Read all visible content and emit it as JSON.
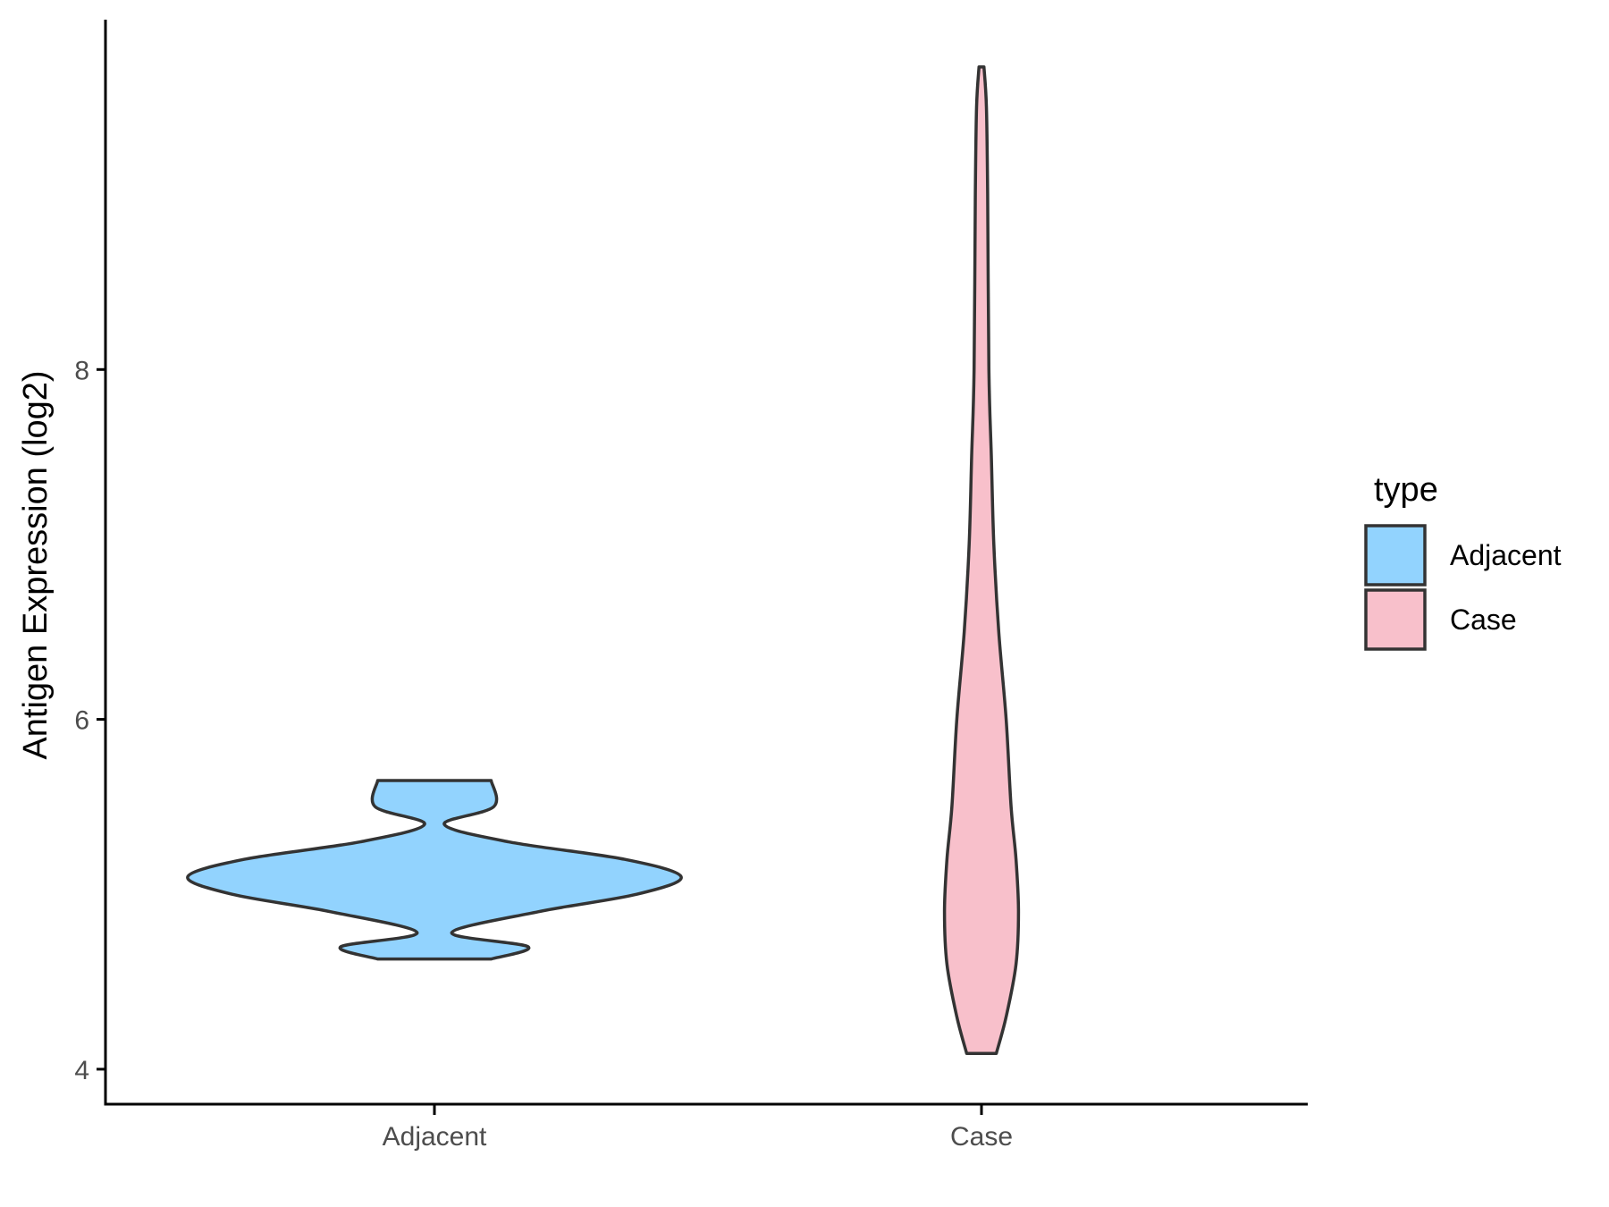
{
  "chart_data": {
    "type": "violin",
    "title": "",
    "xlabel": "",
    "ylabel": "Antigen Expression (log2)",
    "ylim": [
      3.8,
      10.0
    ],
    "yticks": [
      4,
      6,
      8
    ],
    "categories": [
      "Adjacent",
      "Case"
    ],
    "legend": {
      "title": "type",
      "position": "right",
      "entries": [
        {
          "label": "Adjacent",
          "color": "#92d3fe"
        },
        {
          "label": "Case",
          "color": "#f8c0cb"
        }
      ]
    },
    "grid": false,
    "series": [
      {
        "category": "Adjacent",
        "color": "#92d3fe",
        "min": 4.63,
        "max": 5.65,
        "density": [
          [
            4.63,
            0.23
          ],
          [
            4.7,
            0.38
          ],
          [
            4.78,
            0.07
          ],
          [
            4.9,
            0.42
          ],
          [
            5.0,
            0.82
          ],
          [
            5.1,
            1.0
          ],
          [
            5.2,
            0.77
          ],
          [
            5.3,
            0.3
          ],
          [
            5.4,
            0.04
          ],
          [
            5.5,
            0.24
          ],
          [
            5.65,
            0.23
          ]
        ]
      },
      {
        "category": "Case",
        "color": "#f8c0cb",
        "min": 4.09,
        "max": 9.73,
        "density": [
          [
            4.09,
            0.06
          ],
          [
            4.3,
            0.1
          ],
          [
            4.6,
            0.14
          ],
          [
            4.9,
            0.15
          ],
          [
            5.2,
            0.14
          ],
          [
            5.5,
            0.12
          ],
          [
            6.0,
            0.1
          ],
          [
            6.5,
            0.07
          ],
          [
            7.0,
            0.05
          ],
          [
            7.5,
            0.04
          ],
          [
            8.0,
            0.03
          ],
          [
            9.0,
            0.025
          ],
          [
            9.5,
            0.02
          ],
          [
            9.73,
            0.01
          ]
        ]
      }
    ]
  }
}
